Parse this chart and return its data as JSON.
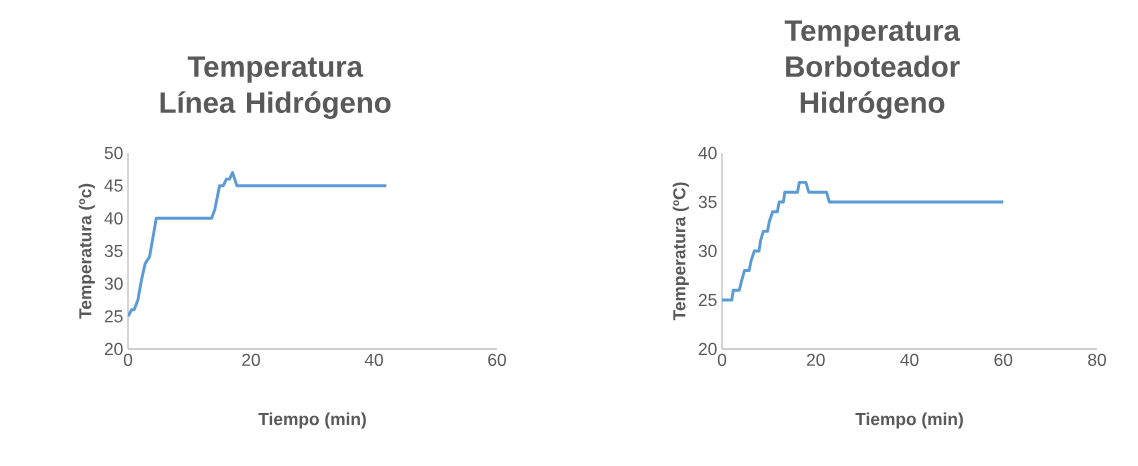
{
  "chart_data": [
    {
      "type": "line",
      "title": "Temperatura Línea Hidrógeno",
      "xlabel": "Tiempo (min)",
      "ylabel": "Temperatura (ºc)",
      "xlim": [
        0,
        60
      ],
      "xticks": [
        0,
        20,
        40,
        60
      ],
      "ylim": [
        20,
        50
      ],
      "yticks": [
        20,
        25,
        30,
        35,
        40,
        45,
        50
      ],
      "series": [
        {
          "color": "#5b9bd5",
          "x": [
            0,
            0.6,
            1.0,
            1.6,
            2.2,
            2.8,
            3.5,
            4.6,
            13.6,
            14.1,
            14.9,
            15.5,
            16.0,
            16.5,
            17.0,
            17.7,
            42
          ],
          "values": [
            25,
            26,
            26,
            27.5,
            30.6,
            33.1,
            34.1,
            40,
            40,
            41.3,
            45,
            45,
            46,
            46,
            47,
            45,
            45
          ]
        }
      ]
    },
    {
      "type": "line",
      "title": "Temperatura Borboteador Hidrógeno",
      "xlabel": "Tiempo (min)",
      "ylabel": "Temperatura (ºC)",
      "xlim": [
        0,
        80
      ],
      "xticks": [
        0,
        20,
        40,
        60,
        80
      ],
      "ylim": [
        20,
        40
      ],
      "yticks": [
        20,
        25,
        30,
        35,
        40
      ],
      "series": [
        {
          "color": "#5b9bd5",
          "x": [
            0,
            2.1,
            2.4,
            3.7,
            4.2,
            4.8,
            5.8,
            6.2,
            6.9,
            7.9,
            8.2,
            8.8,
            9.7,
            10.1,
            10.8,
            11.8,
            12.2,
            13.1,
            13.4,
            16.1,
            16.5,
            17.9,
            18.5,
            22.3,
            22.9,
            60
          ],
          "values": [
            25,
            25,
            26,
            26,
            27,
            28,
            28,
            29,
            30,
            30,
            31,
            32,
            32,
            33,
            34,
            34,
            35,
            35,
            36,
            36,
            37,
            37,
            36,
            36,
            35,
            35
          ]
        }
      ]
    }
  ]
}
